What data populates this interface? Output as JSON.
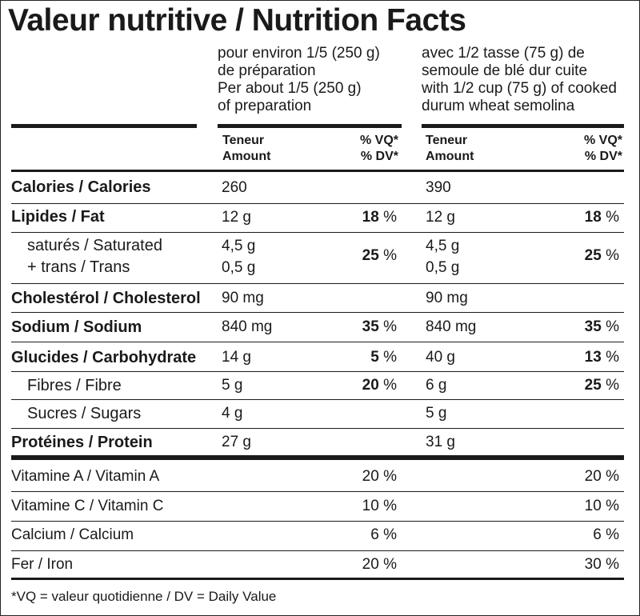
{
  "title": "Valeur nutritive / Nutrition Facts",
  "columns": [
    {
      "heading": "pour environ 1/5 (250 g)\nde préparation\nPer about 1/5 (250 g)\nof preparation",
      "amount_label": "Teneur\nAmount",
      "dv_label": "% VQ*\n% DV*"
    },
    {
      "heading": "avec 1/2 tasse (75 g) de\nsemoule de blé dur cuite\nwith 1/2 cup (75 g) of cooked\ndurum wheat semolina",
      "amount_label": "Teneur\nAmount",
      "dv_label": "% VQ*\n% DV*"
    }
  ],
  "rows": [
    {
      "label": "Calories / Calories",
      "c1": "260",
      "p1": "",
      "c2": "390",
      "p2": ""
    },
    {
      "label": "Lipides / Fat",
      "c1": "12 g",
      "p1": "18",
      "c2": "12 g",
      "p2": "18"
    },
    {
      "label": "saturés / Saturated\n+ trans / Trans",
      "c1": "4,5 g\n0,5 g",
      "p1": "25",
      "c2": "4,5 g\n0,5 g",
      "p2": "25"
    },
    {
      "label": "Cholestérol / Cholesterol",
      "c1": "90 mg",
      "p1": "",
      "c2": "90 mg",
      "p2": ""
    },
    {
      "label": "Sodium / Sodium",
      "c1": "840 mg",
      "p1": "35",
      "c2": "840 mg",
      "p2": "35"
    },
    {
      "label": "Glucides / Carbohydrate",
      "c1": "14 g",
      "p1": "5",
      "c2": "40 g",
      "p2": "13"
    },
    {
      "label": "Fibres / Fibre",
      "c1": "5 g",
      "p1": "20",
      "c2": "6 g",
      "p2": "25"
    },
    {
      "label": "Sucres / Sugars",
      "c1": "4 g",
      "p1": "",
      "c2": "5 g",
      "p2": ""
    },
    {
      "label": "Protéines / Protein",
      "c1": "27 g",
      "p1": "",
      "c2": "31 g",
      "p2": ""
    }
  ],
  "vitamins": [
    {
      "label": "Vitamine A / Vitamin A",
      "p1": "20",
      "p2": "20"
    },
    {
      "label": "Vitamine C / Vitamin C",
      "p1": "10",
      "p2": "10"
    },
    {
      "label": "Calcium / Calcium",
      "p1": "6",
      "p2": "6"
    },
    {
      "label": "Fer / Iron",
      "p1": "20",
      "p2": "30"
    }
  ],
  "percent_sign": "%",
  "footnote": "*VQ = valeur quotidienne / DV = Daily Value"
}
